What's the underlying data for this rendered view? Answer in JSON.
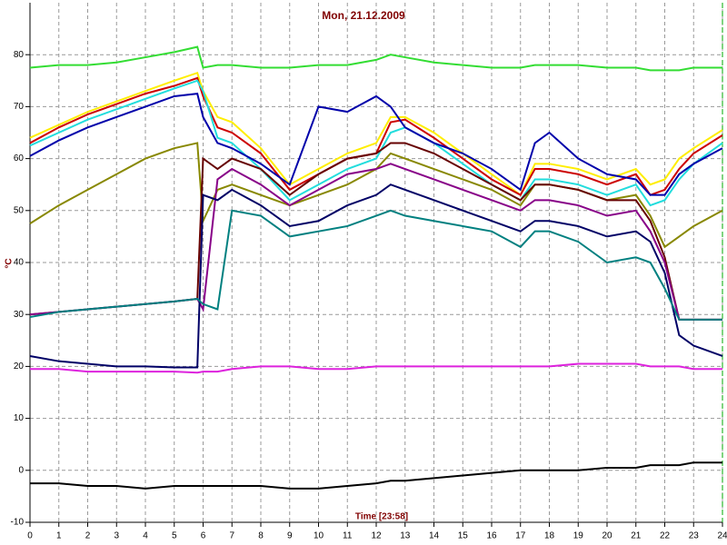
{
  "chart_data": {
    "type": "line",
    "title": "Mon, 21.12.2009",
    "x_label": "Time [23:58]",
    "y_label": "°C",
    "x": [
      0,
      1,
      2,
      3,
      4,
      5,
      5.8,
      6,
      6.5,
      7,
      8,
      9,
      10,
      11,
      12,
      12.5,
      13,
      14,
      15,
      16,
      17,
      17.5,
      18,
      19,
      20,
      21,
      21.5,
      22,
      22.5,
      23,
      24
    ],
    "xlim": [
      0,
      24
    ],
    "xticks": [
      0,
      1,
      2,
      3,
      4,
      5,
      6,
      7,
      8,
      9,
      10,
      11,
      12,
      13,
      14,
      15,
      16,
      17,
      18,
      19,
      20,
      21,
      22,
      23,
      24
    ],
    "ylim": [
      -10,
      90
    ],
    "yticks": [
      -10,
      0,
      10,
      20,
      30,
      40,
      50,
      60,
      70,
      80
    ],
    "grid": true,
    "series": [
      {
        "color": "#33dd33",
        "values": [
          77.5,
          78,
          78,
          78.5,
          79.5,
          80.5,
          81.5,
          77.5,
          78,
          78,
          77.5,
          77.5,
          78,
          78,
          79,
          80,
          79.5,
          78.5,
          78,
          77.5,
          77.5,
          78,
          78,
          78,
          77.5,
          77.5,
          77,
          77,
          77,
          77.5,
          77.5
        ]
      },
      {
        "color": "#ffee00",
        "values": [
          64,
          66.5,
          69,
          71,
          73,
          75,
          76.5,
          73,
          68,
          67,
          62,
          55,
          58,
          61,
          63,
          68,
          68,
          65,
          61,
          57,
          53,
          59,
          59,
          58,
          56,
          58,
          55,
          56,
          60,
          62,
          65.5
        ]
      },
      {
        "color": "#cc0000",
        "values": [
          63,
          66,
          68.5,
          70.5,
          72.5,
          74,
          75.5,
          72,
          66,
          65,
          61,
          54,
          57,
          60,
          61,
          67,
          67.5,
          64,
          60,
          56,
          53,
          58,
          58,
          57,
          55,
          57,
          53,
          54,
          58,
          61,
          64.5
        ]
      },
      {
        "color": "#22dddd",
        "values": [
          62.5,
          65,
          67.5,
          69.5,
          71.5,
          73.5,
          75,
          73,
          64,
          63,
          58,
          52,
          55,
          58,
          60,
          65,
          66,
          63,
          59,
          55,
          52,
          56,
          56,
          55,
          53,
          55,
          51,
          52,
          56,
          59,
          63
        ]
      },
      {
        "color": "#0000aa",
        "values": [
          60.5,
          63.5,
          66,
          68,
          70,
          72,
          72.5,
          68,
          63,
          62,
          59,
          55,
          70,
          69,
          72,
          70,
          66,
          63,
          61,
          58,
          54,
          63,
          65,
          60,
          57,
          56,
          53,
          53,
          57,
          59,
          62
        ]
      },
      {
        "color": "#888800",
        "values": [
          47.5,
          51,
          54,
          57,
          60,
          62,
          63,
          48,
          54,
          55,
          53,
          51,
          53,
          55,
          58,
          61,
          60,
          58,
          56,
          54,
          51,
          55,
          55,
          54,
          52,
          53,
          49,
          43,
          45,
          47,
          50
        ]
      },
      {
        "color": "#660000",
        "values": [
          30,
          30.5,
          31,
          31.5,
          32,
          32.5,
          33,
          60,
          58,
          60,
          58,
          53,
          57,
          60,
          61,
          63,
          63,
          61,
          58,
          55,
          52,
          55,
          55,
          54,
          52,
          52,
          48,
          41,
          29,
          29,
          29
        ]
      },
      {
        "color": "#880088",
        "values": [
          30,
          30.5,
          31,
          31.5,
          32,
          32.5,
          33,
          31,
          56,
          58,
          55,
          51,
          54,
          57,
          58,
          59,
          58,
          56,
          54,
          52,
          50,
          52,
          52,
          51,
          49,
          50,
          46,
          40,
          29,
          29,
          29
        ]
      },
      {
        "color": "#000066",
        "values": [
          22,
          21,
          20.5,
          20,
          20,
          19.8,
          19.8,
          53,
          52,
          54,
          51,
          47,
          48,
          51,
          53,
          55,
          54,
          52,
          50,
          48,
          46,
          48,
          48,
          47,
          45,
          46,
          44,
          38,
          26,
          24,
          22
        ]
      },
      {
        "color": "#008080",
        "values": [
          29.5,
          30.5,
          31,
          31.5,
          32,
          32.5,
          33,
          32,
          31,
          50,
          49,
          45,
          46,
          47,
          49,
          50,
          49,
          48,
          47,
          46,
          43,
          46,
          46,
          44,
          40,
          41,
          40,
          35,
          29,
          29,
          29
        ]
      },
      {
        "color": "#dd22dd",
        "values": [
          19.5,
          19.5,
          19,
          19,
          19,
          19,
          18.8,
          19,
          19,
          19.5,
          20,
          20,
          19.5,
          19.5,
          20,
          20,
          20,
          20,
          20,
          20,
          20,
          20,
          20,
          20.5,
          20.5,
          20.5,
          20,
          20,
          20,
          19.5,
          19.5
        ]
      },
      {
        "color": "#000000",
        "values": [
          -2.5,
          -2.5,
          -3,
          -3,
          -3.5,
          -3,
          -3,
          -3,
          -3,
          -3,
          -3,
          -3.5,
          -3.5,
          -3,
          -2.5,
          -2,
          -2,
          -1.5,
          -1,
          -0.5,
          0,
          0,
          0,
          0,
          0.5,
          0.5,
          1,
          1,
          1,
          1.5,
          1.5
        ]
      }
    ]
  }
}
